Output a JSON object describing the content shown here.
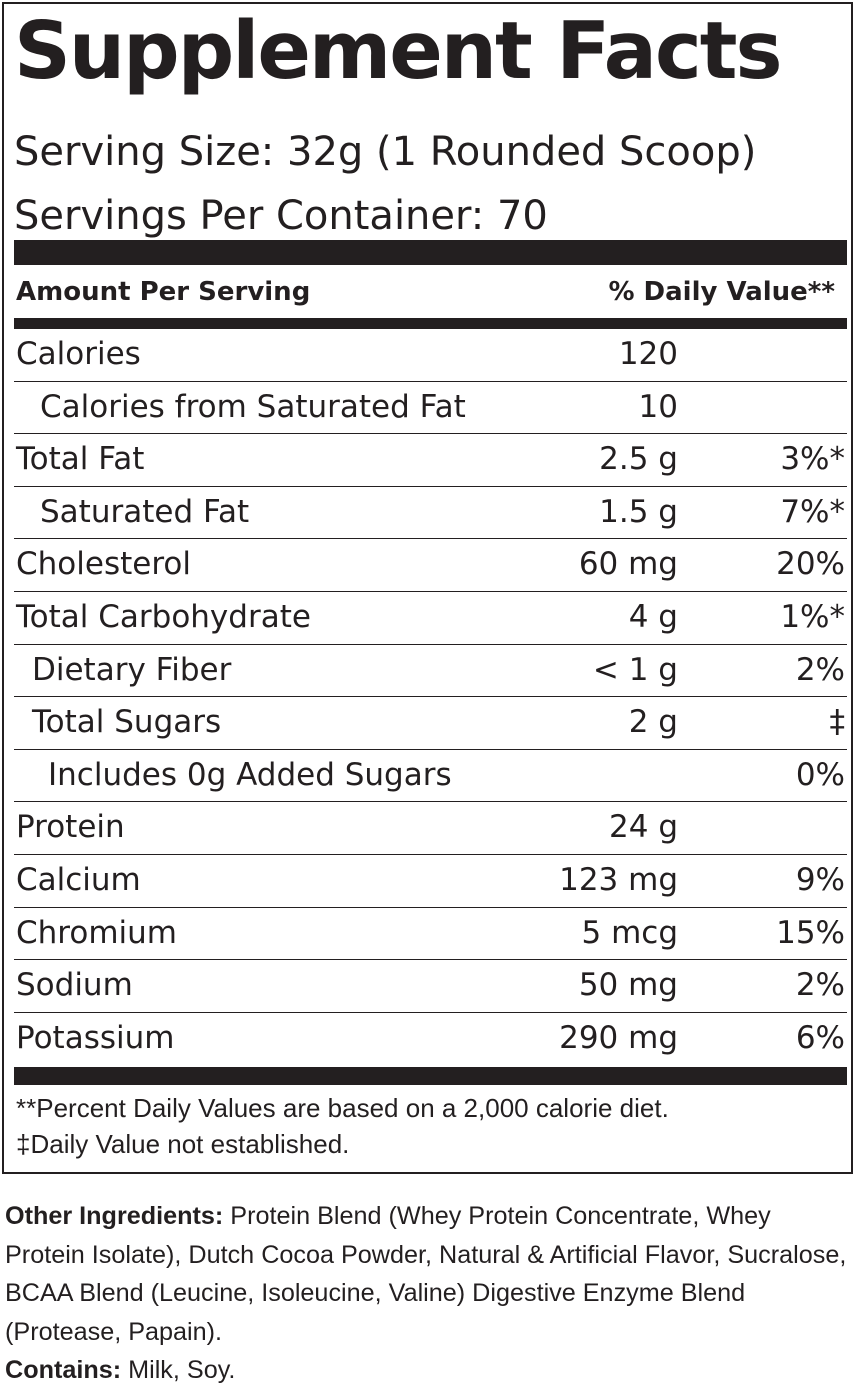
{
  "label": {
    "title": "Supplement Facts",
    "serving_size": "Serving Size: 32g (1 Rounded Scoop)",
    "servings_per_container": "Servings Per Container: 70",
    "amount_header": "Amount Per Serving",
    "dv_header": "% Daily Value**",
    "rows": [
      {
        "name": "Calories",
        "amount": "120",
        "dv": ""
      },
      {
        "name": "Calories from Saturated Fat",
        "amount": "10",
        "dv": ""
      },
      {
        "name": "Total Fat",
        "amount": "2.5 g",
        "dv": "3%*"
      },
      {
        "name": "Saturated Fat",
        "amount": "1.5 g",
        "dv": "7%*"
      },
      {
        "name": "Cholesterol",
        "amount": "60 mg",
        "dv": "20%"
      },
      {
        "name": "Total Carbohydrate",
        "amount": "4 g",
        "dv": "1%*"
      },
      {
        "name": "Dietary Fiber",
        "amount": "< 1 g",
        "dv": "2%"
      },
      {
        "name": "Total Sugars",
        "amount": "2 g",
        "dv": "‡"
      },
      {
        "name": "Includes 0g Added Sugars",
        "amount": "",
        "dv": "0%"
      },
      {
        "name": "Protein",
        "amount": "24 g",
        "dv": ""
      },
      {
        "name": "Calcium",
        "amount": "123 mg",
        "dv": "9%"
      },
      {
        "name": "Chromium",
        "amount": "5 mcg",
        "dv": "15%"
      },
      {
        "name": "Sodium",
        "amount": "50 mg",
        "dv": "2%"
      },
      {
        "name": "Potassium",
        "amount": "290 mg",
        "dv": "6%"
      }
    ],
    "footnote_1": "**Percent Daily Values are based on a 2,000 calorie diet.",
    "footnote_2": "‡Daily Value not established."
  },
  "ingredients": {
    "other_label": "Other Ingredients:",
    "other_text": " Protein Blend (Whey Protein Concentrate, Whey Protein Isolate), Dutch Cocoa Powder, Natural & Artificial Flavor, Sucralose, BCAA Blend (Leucine, Isoleucine, Valine) Digestive Enzyme Blend (Protease, Papain).",
    "contains_label": "Contains:",
    "contains_text": " Milk, Soy."
  }
}
